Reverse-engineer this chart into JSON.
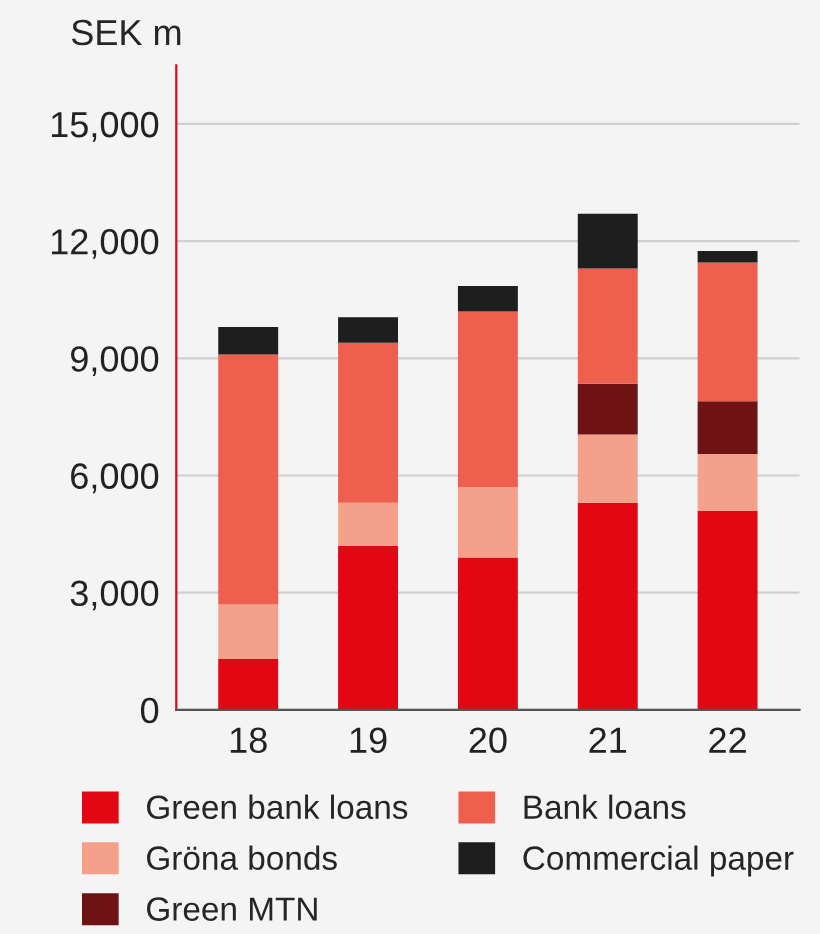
{
  "chart_data": {
    "type": "bar",
    "ylabel": "SEK m",
    "stacked": true,
    "categories": [
      "18",
      "19",
      "20",
      "21",
      "22"
    ],
    "series": [
      {
        "name": "Green bank loans",
        "color": "#e30613",
        "values": [
          1300,
          4200,
          3900,
          5300,
          5100
        ]
      },
      {
        "name": "Gröna bonds",
        "color": "#f4a08a",
        "values": [
          1400,
          1100,
          1800,
          1750,
          1450
        ]
      },
      {
        "name": "Green MTN",
        "color": "#6e1214",
        "values": [
          null,
          null,
          null,
          1300,
          1350
        ]
      },
      {
        "name": "Bank loans",
        "color": "#ee5f4e",
        "values": [
          6400,
          4100,
          4500,
          2950,
          3550
        ]
      },
      {
        "name": "Commercial paper",
        "color": "#1e1e1e",
        "values": [
          700,
          650,
          650,
          1400,
          300
        ]
      }
    ],
    "ylim": [
      0,
      16500
    ],
    "yticks": [
      0,
      {
        "value": 3000,
        "label": "3,000"
      },
      {
        "value": 6000,
        "label": "6,000"
      },
      {
        "value": 9000,
        "label": "9,000"
      },
      {
        "value": 12000,
        "label": "12,000"
      },
      {
        "value": 15000,
        "label": "15,000"
      }
    ],
    "grid": "y",
    "legend": "bottom"
  }
}
